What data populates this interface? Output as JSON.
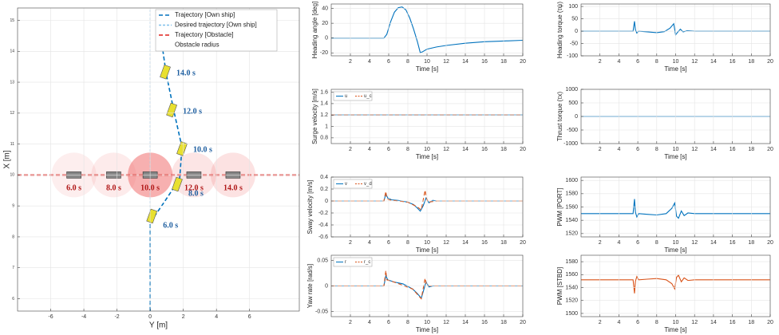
{
  "chart_data": [
    {
      "type": "trajectory",
      "xlabel": "Y [m]",
      "ylabel": "X [m]",
      "xlim": [
        -8,
        9
      ],
      "ylim": [
        5.6,
        15.4
      ],
      "xticks": [
        -6,
        -4,
        -2,
        0,
        2,
        4,
        6
      ],
      "yticks": [
        6,
        7,
        8,
        9,
        10,
        11,
        12,
        13,
        14,
        15
      ],
      "grid": true,
      "legend": "upper right",
      "series": [
        {
          "name": "Trajectory [Own ship]",
          "color": "#0072BD",
          "style": "dashed",
          "x": [
            0,
            0,
            0,
            0.82,
            1.78,
            1.92,
            1.44,
            0.96,
            0.72
          ],
          "values": [
            5.6,
            7,
            8.46,
            9.1,
            9.87,
            10.9,
            12.05,
            13.3,
            14.2
          ]
        },
        {
          "name": "Desired trajectory [Own ship]",
          "color": "#7fbfea",
          "style": "thin-dashed",
          "x": [
            0,
            0
          ],
          "values": [
            5.6,
            15.4
          ]
        },
        {
          "name": "Trajectory [Obstacle]",
          "color": "#e0201b",
          "style": "dashed",
          "x": [
            -8,
            9
          ],
          "values": [
            10,
            10
          ]
        }
      ],
      "obstacle": {
        "name": "Obstacle radius",
        "color": "#f07070",
        "radius": 1.35,
        "x": [
          -4.6,
          -2.2,
          0,
          2.64,
          5.0
        ],
        "values": [
          10,
          10,
          10,
          10,
          10
        ],
        "labels": [
          "6.0 s",
          "8.0 s",
          "10.0 s",
          "12.0 s",
          "14.0 s"
        ]
      },
      "own_ship": {
        "color": "#e8e030",
        "x": [
          0.1,
          1.63,
          1.92,
          1.3,
          0.91
        ],
        "values": [
          8.67,
          9.7,
          10.85,
          12.1,
          13.33
        ],
        "labels": [
          "6.0 s",
          "8.0 s",
          "10.0 s",
          "12.0 s",
          "14.0 s"
        ]
      }
    },
    {
      "type": "line",
      "xlabel": "Time [s]",
      "ylabel": "Heading angle [deg]",
      "xlim": [
        0,
        20
      ],
      "ylim": [
        -24,
        46
      ],
      "xticks": [
        2,
        4,
        6,
        8,
        10,
        12,
        14,
        16,
        18,
        20
      ],
      "yticks": [
        -20,
        0,
        20,
        40
      ],
      "grid": true,
      "series": [
        {
          "color": "#0072BD",
          "style": "solid",
          "x": [
            0,
            5.5,
            5.8,
            6.2,
            6.6,
            7,
            7.4,
            7.8,
            8.2,
            8.6,
            9,
            9.3,
            9.6,
            10,
            11,
            12,
            14,
            16,
            18,
            20
          ],
          "values": [
            0,
            0,
            5,
            22,
            35,
            41,
            42,
            38,
            27,
            12,
            -5,
            -20,
            -18,
            -15,
            -12,
            -10,
            -7,
            -5,
            -4,
            -3
          ]
        }
      ]
    },
    {
      "type": "line",
      "xlabel": "Time [s]",
      "ylabel": "Surge velocity [m/s]",
      "xlim": [
        0,
        20
      ],
      "ylim": [
        0.7,
        1.65
      ],
      "xticks": [
        2,
        4,
        6,
        8,
        10,
        12,
        14,
        16,
        18,
        20
      ],
      "yticks": [
        0.8,
        1,
        1.2,
        1.4,
        1.6
      ],
      "grid": true,
      "legend": "upper left",
      "series": [
        {
          "name": "u",
          "color": "#0072BD",
          "style": "solid",
          "x": [
            0,
            20
          ],
          "values": [
            1.2,
            1.2
          ]
        },
        {
          "name": "u_c",
          "color": "#D95319",
          "style": "dashed",
          "x": [
            0,
            20
          ],
          "values": [
            1.2,
            1.2
          ]
        }
      ]
    },
    {
      "type": "line",
      "xlabel": "Time [s]",
      "ylabel": "Sway velocity [m/s]",
      "xlim": [
        0,
        20
      ],
      "ylim": [
        -0.6,
        0.4
      ],
      "xticks": [
        2,
        4,
        6,
        8,
        10,
        12,
        14,
        16,
        18,
        20
      ],
      "yticks": [
        -0.6,
        -0.4,
        -0.2,
        0,
        0.2,
        0.4
      ],
      "grid": true,
      "legend": "upper left",
      "series": [
        {
          "name": "v",
          "color": "#0072BD",
          "style": "solid",
          "x": [
            0,
            5.5,
            5.7,
            5.9,
            6.3,
            7,
            8,
            8.6,
            9.0,
            9.3,
            9.6,
            9.9,
            10.2,
            10.6,
            11,
            20
          ],
          "values": [
            0,
            0,
            0.12,
            0.05,
            0.02,
            0.01,
            -0.02,
            -0.06,
            -0.12,
            -0.17,
            -0.08,
            0.05,
            -0.03,
            0.01,
            0,
            0
          ]
        },
        {
          "name": "v_d",
          "color": "#D95319",
          "style": "dashed",
          "x": [
            0,
            5.5,
            5.7,
            5.8,
            6.0,
            8,
            9.0,
            9.4,
            9.8,
            9.9,
            10.1,
            11,
            20
          ],
          "values": [
            0,
            0,
            0.16,
            0.05,
            0.02,
            -0.02,
            -0.1,
            -0.15,
            0.18,
            0.08,
            -0.02,
            0,
            0
          ]
        }
      ]
    },
    {
      "type": "line",
      "xlabel": "Time [s]",
      "ylabel": "Yaw rate [rad/s]",
      "xlim": [
        0,
        20
      ],
      "ylim": [
        -0.06,
        0.06
      ],
      "xticks": [
        2,
        4,
        6,
        8,
        10,
        12,
        14,
        16,
        18,
        20
      ],
      "yticks": [
        -0.05,
        0,
        0.05
      ],
      "grid": true,
      "legend": "upper left",
      "series": [
        {
          "name": "r",
          "color": "#0072BD",
          "style": "solid",
          "x": [
            0,
            5.5,
            5.7,
            5.9,
            6.5,
            7.5,
            8.5,
            9.0,
            9.4,
            9.7,
            9.9,
            10.2,
            10.6,
            20
          ],
          "values": [
            0,
            0,
            0.02,
            0.012,
            0.008,
            0.004,
            -0.006,
            -0.015,
            -0.024,
            -0.005,
            0.008,
            -0.002,
            0,
            0
          ]
        },
        {
          "name": "r_c",
          "color": "#D95319",
          "style": "dashed",
          "x": [
            0,
            5.5,
            5.7,
            5.8,
            6.5,
            8.5,
            9.4,
            9.8,
            9.9,
            10.2,
            20
          ],
          "values": [
            0,
            0,
            0.03,
            0.012,
            0.008,
            -0.006,
            -0.025,
            0.015,
            0.005,
            0,
            0
          ]
        }
      ]
    },
    {
      "type": "line",
      "xlabel": "Time [s]",
      "ylabel": "Heading torque (τψ)",
      "xlim": [
        0,
        20
      ],
      "ylim": [
        -100,
        110
      ],
      "xticks": [
        2,
        4,
        6,
        8,
        10,
        12,
        14,
        16,
        18,
        20
      ],
      "yticks": [
        -100,
        -50,
        0,
        50,
        100
      ],
      "grid": true,
      "series": [
        {
          "color": "#0072BD",
          "style": "solid",
          "x": [
            0,
            5.5,
            5.65,
            5.75,
            5.9,
            6.1,
            7,
            8,
            8.8,
            9.4,
            9.8,
            10.0,
            10.2,
            10.5,
            10.8,
            11.2,
            12,
            20
          ],
          "values": [
            0,
            0,
            40,
            5,
            -8,
            0,
            -3,
            -6,
            -2,
            12,
            30,
            -15,
            -5,
            8,
            -3,
            2,
            0,
            0
          ]
        }
      ]
    },
    {
      "type": "line",
      "xlabel": "Time [s]",
      "ylabel": "Thrust torque (τx)",
      "xlim": [
        0,
        20
      ],
      "ylim": [
        -1000,
        1000
      ],
      "xticks": [
        2,
        4,
        6,
        8,
        10,
        12,
        14,
        16,
        18,
        20
      ],
      "yticks": [
        -1000,
        -500,
        0,
        500,
        1000
      ],
      "grid": true,
      "series": [
        {
          "color": "#0072BD",
          "style": "solid",
          "x": [
            0,
            20
          ],
          "values": [
            0,
            0
          ]
        }
      ]
    },
    {
      "type": "line",
      "xlabel": "Time [s]",
      "ylabel": "PWM [PORT]",
      "xlim": [
        0,
        20
      ],
      "ylim": [
        1515,
        1605
      ],
      "xticks": [
        2,
        4,
        6,
        8,
        10,
        12,
        14,
        16,
        18,
        20
      ],
      "yticks": [
        1520,
        1540,
        1560,
        1580,
        1600
      ],
      "grid": true,
      "series": [
        {
          "color": "#0072BD",
          "style": "solid",
          "x": [
            0,
            5.5,
            5.65,
            5.75,
            5.9,
            6.1,
            7,
            8,
            9,
            9.6,
            9.9,
            10.1,
            10.3,
            10.6,
            10.9,
            11.3,
            12,
            20
          ],
          "values": [
            1550,
            1550,
            1572,
            1552,
            1545,
            1550,
            1549,
            1548,
            1550,
            1558,
            1566,
            1546,
            1543,
            1554,
            1547,
            1551,
            1550,
            1550
          ]
        }
      ]
    },
    {
      "type": "line",
      "xlabel": "Time [s]",
      "ylabel": "PWM [STBD]",
      "xlim": [
        0,
        20
      ],
      "ylim": [
        1495,
        1590
      ],
      "xticks": [
        2,
        4,
        6,
        8,
        10,
        12,
        14,
        16,
        18,
        20
      ],
      "yticks": [
        1500,
        1520,
        1540,
        1560,
        1580
      ],
      "grid": true,
      "series": [
        {
          "color": "#D95319",
          "style": "solid",
          "x": [
            0,
            5.5,
            5.65,
            5.75,
            5.9,
            6.1,
            7,
            8,
            9,
            9.6,
            9.9,
            10.1,
            10.3,
            10.6,
            10.9,
            11.3,
            12,
            20
          ],
          "values": [
            1552,
            1552,
            1531,
            1550,
            1557,
            1552,
            1553,
            1554,
            1552,
            1546,
            1538,
            1556,
            1559,
            1549,
            1555,
            1551,
            1552,
            1552
          ]
        }
      ]
    }
  ]
}
